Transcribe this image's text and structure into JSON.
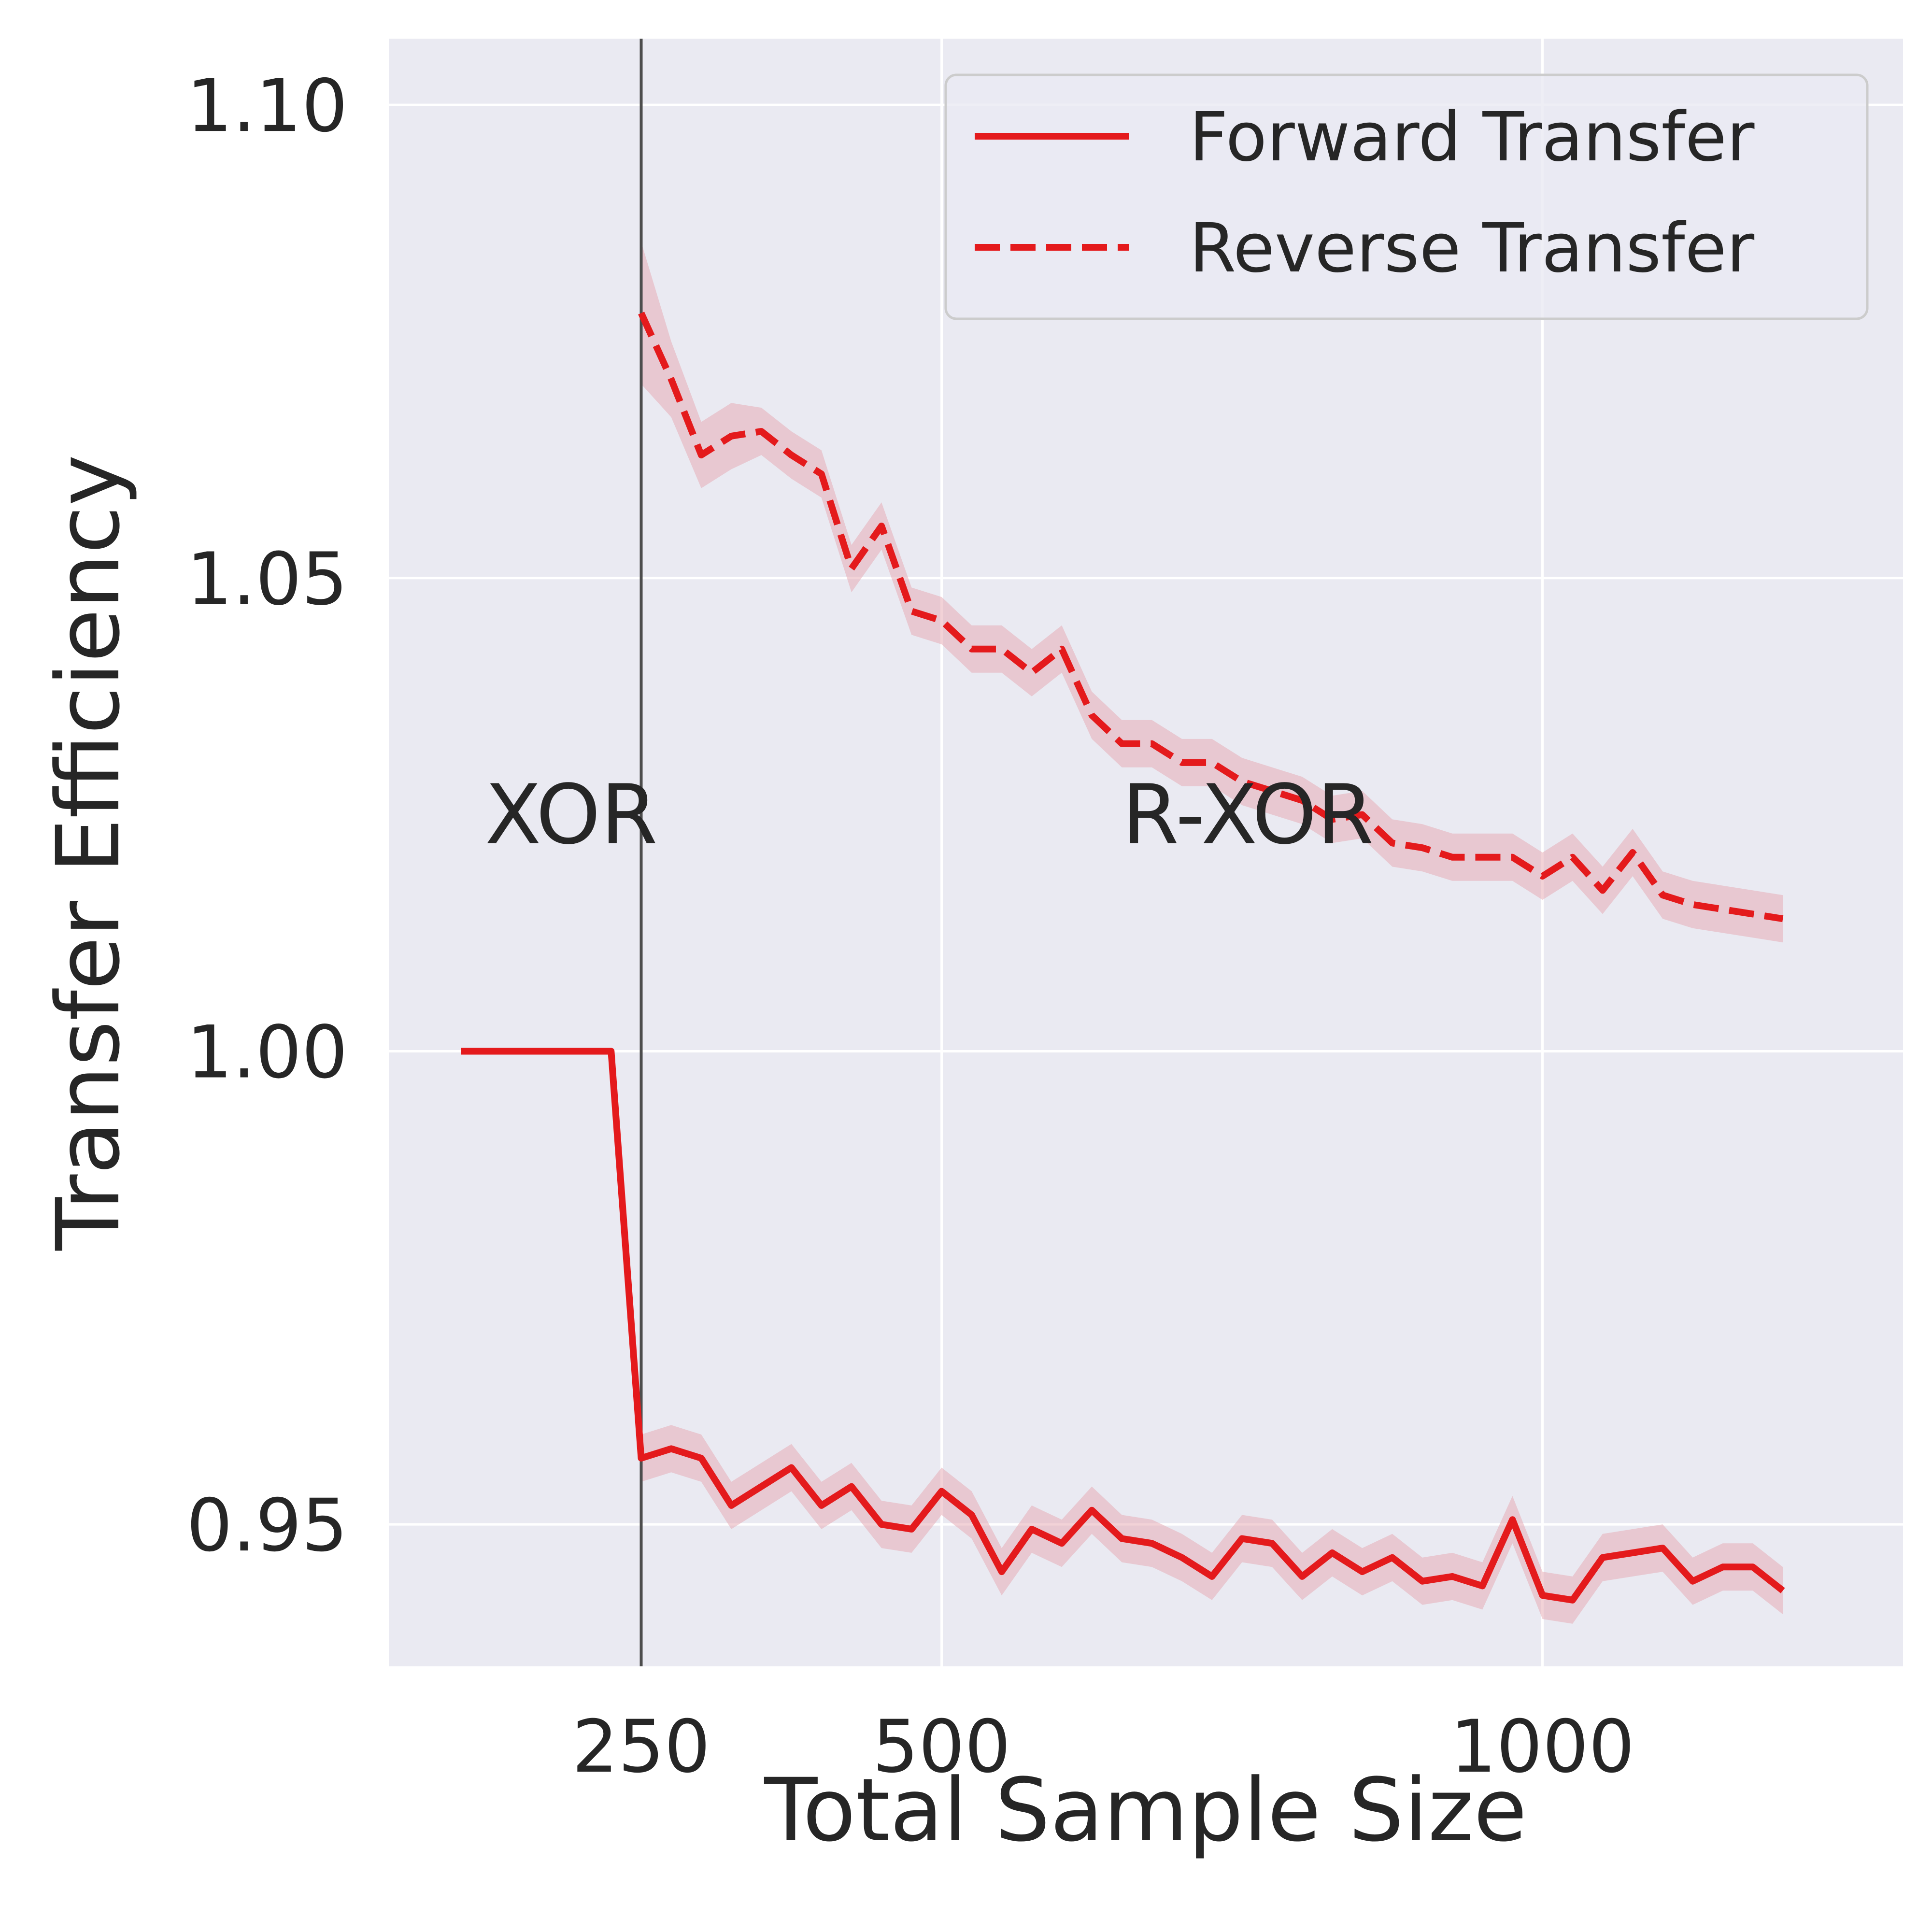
{
  "chart_data": {
    "type": "line",
    "title": "",
    "xlabel": "Total Sample Size",
    "ylabel": "Transfer Efficiency",
    "xlim": [
      40,
      1300
    ],
    "ylim": [
      0.935,
      1.107
    ],
    "x_ticks": [
      {
        "value": 250,
        "label": "250"
      },
      {
        "value": 500,
        "label": "500"
      },
      {
        "value": 1000,
        "label": "1000"
      }
    ],
    "y_ticks": [
      {
        "value": 0.95,
        "label": "0.95"
      },
      {
        "value": 1.0,
        "label": "1.00"
      },
      {
        "value": 1.05,
        "label": "1.05"
      },
      {
        "value": 1.1,
        "label": "1.10"
      }
    ],
    "grid": true,
    "legend_position": "top-right",
    "colors": {
      "background": "#EAEAF2",
      "grid": "#FFFFFF",
      "series": "#E41A1C",
      "band": "#E6A6B0",
      "divider": "#4D4D4D"
    },
    "divider_x": 250,
    "annotations": [
      {
        "text": "XOR",
        "x": 120,
        "y": 1.022
      },
      {
        "text": "R-XOR",
        "x": 650,
        "y": 1.022
      }
    ],
    "series": [
      {
        "name": "Forward Transfer",
        "style": "solid",
        "points": [
          [
            100,
            1.0
          ],
          [
            125,
            1.0
          ],
          [
            150,
            1.0
          ],
          [
            175,
            1.0
          ],
          [
            200,
            1.0
          ],
          [
            225,
            1.0
          ],
          [
            250,
            0.957
          ],
          [
            275,
            0.958
          ],
          [
            300,
            0.957
          ],
          [
            325,
            0.952
          ],
          [
            350,
            0.954
          ],
          [
            375,
            0.956
          ],
          [
            400,
            0.952
          ],
          [
            425,
            0.954
          ],
          [
            450,
            0.95
          ],
          [
            475,
            0.9495
          ],
          [
            500,
            0.9535
          ],
          [
            525,
            0.951
          ],
          [
            550,
            0.945
          ],
          [
            575,
            0.9495
          ],
          [
            600,
            0.948
          ],
          [
            625,
            0.9515
          ],
          [
            650,
            0.9485
          ],
          [
            675,
            0.948
          ],
          [
            700,
            0.9465
          ],
          [
            725,
            0.9445
          ],
          [
            750,
            0.9485
          ],
          [
            775,
            0.948
          ],
          [
            800,
            0.9445
          ],
          [
            825,
            0.947
          ],
          [
            850,
            0.945
          ],
          [
            875,
            0.9465
          ],
          [
            900,
            0.944
          ],
          [
            925,
            0.9445
          ],
          [
            950,
            0.9435
          ],
          [
            975,
            0.9505
          ],
          [
            1000,
            0.9425
          ],
          [
            1025,
            0.942
          ],
          [
            1050,
            0.9465
          ],
          [
            1075,
            0.947
          ],
          [
            1100,
            0.9475
          ],
          [
            1125,
            0.944
          ],
          [
            1150,
            0.9455
          ],
          [
            1175,
            0.9455
          ],
          [
            1200,
            0.943
          ]
        ],
        "band": [
          0.0,
          0.0,
          0.0,
          0.0,
          0.0,
          0.0,
          0.0025,
          0.0025,
          0.0025,
          0.0025,
          0.0025,
          0.0025,
          0.0025,
          0.0025,
          0.0025,
          0.0025,
          0.0025,
          0.0025,
          0.0025,
          0.0025,
          0.0025,
          0.0025,
          0.0025,
          0.0025,
          0.0025,
          0.0025,
          0.0025,
          0.0025,
          0.0025,
          0.0025,
          0.0025,
          0.0025,
          0.0025,
          0.0025,
          0.0025,
          0.0025,
          0.0025,
          0.0025,
          0.0025,
          0.0025,
          0.0025,
          0.0025,
          0.0025,
          0.0025,
          0.0025
        ]
      },
      {
        "name": "Reverse Transfer",
        "style": "dashed",
        "points": [
          [
            250,
            1.078
          ],
          [
            275,
            1.071
          ],
          [
            300,
            1.063
          ],
          [
            325,
            1.065
          ],
          [
            350,
            1.0655
          ],
          [
            375,
            1.063
          ],
          [
            400,
            1.061
          ],
          [
            425,
            1.051
          ],
          [
            450,
            1.0555
          ],
          [
            475,
            1.0465
          ],
          [
            500,
            1.0455
          ],
          [
            525,
            1.0425
          ],
          [
            550,
            1.0425
          ],
          [
            575,
            1.04
          ],
          [
            600,
            1.0425
          ],
          [
            625,
            1.0355
          ],
          [
            650,
            1.0325
          ],
          [
            675,
            1.0325
          ],
          [
            700,
            1.0305
          ],
          [
            725,
            1.0305
          ],
          [
            750,
            1.0285
          ],
          [
            775,
            1.0275
          ],
          [
            800,
            1.0265
          ],
          [
            825,
            1.0245
          ],
          [
            850,
            1.025
          ],
          [
            875,
            1.022
          ],
          [
            900,
            1.0215
          ],
          [
            925,
            1.0205
          ],
          [
            950,
            1.0205
          ],
          [
            975,
            1.0205
          ],
          [
            1000,
            1.0185
          ],
          [
            1025,
            1.0205
          ],
          [
            1050,
            1.017
          ],
          [
            1075,
            1.021
          ],
          [
            1100,
            1.0165
          ],
          [
            1125,
            1.0155
          ],
          [
            1150,
            1.015
          ],
          [
            1175,
            1.0145
          ],
          [
            1200,
            1.014
          ]
        ],
        "band": [
          0.0075,
          0.004,
          0.0035,
          0.0035,
          0.0025,
          0.0025,
          0.0025,
          0.0025,
          0.0025,
          0.0025,
          0.0025,
          0.0025,
          0.0025,
          0.0025,
          0.0025,
          0.0025,
          0.0025,
          0.0025,
          0.0025,
          0.0025,
          0.0025,
          0.0025,
          0.0025,
          0.0025,
          0.0025,
          0.0025,
          0.0025,
          0.0025,
          0.0025,
          0.0025,
          0.0025,
          0.0025,
          0.0025,
          0.0025,
          0.0025,
          0.0025,
          0.0025,
          0.0025,
          0.0025
        ]
      }
    ]
  }
}
